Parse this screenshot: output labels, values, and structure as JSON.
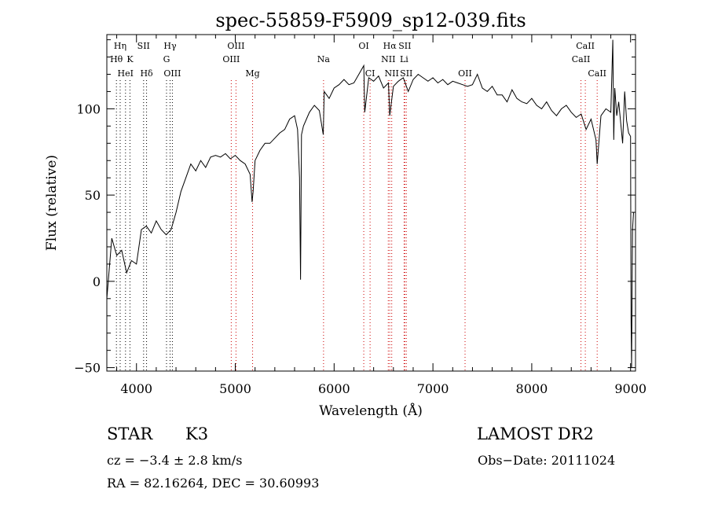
{
  "chart_data": {
    "type": "line",
    "title": "spec-55859-F5909_sp12-039.fits",
    "xlabel": "Wavelength (Å)",
    "ylabel": "Flux (relative)",
    "xlim": [
      3700,
      9050
    ],
    "ylim": [
      -52,
      143
    ],
    "x_ticks": [
      4000,
      5000,
      6000,
      7000,
      8000,
      9000
    ],
    "y_ticks": [
      -50,
      0,
      50,
      100
    ],
    "x_tick_labels": [
      "4000",
      "5000",
      "6000",
      "7000",
      "8000",
      "9000"
    ],
    "y_tick_labels": [
      "−50",
      "0",
      "50",
      "100"
    ],
    "series": [
      {
        "x": [
          3700,
          3750,
          3800,
          3850,
          3900,
          3950,
          4000,
          4050,
          4100,
          4150,
          4200,
          4250,
          4300,
          4350,
          4400,
          4450,
          4500,
          4550,
          4600,
          4650,
          4700,
          4750,
          4800,
          4850,
          4900,
          4950,
          5000,
          5050,
          5100,
          5150,
          5170,
          5180,
          5200,
          5250,
          5300,
          5350,
          5400,
          5450,
          5500,
          5550,
          5600,
          5630,
          5650,
          5660,
          5670,
          5690,
          5720,
          5750,
          5800,
          5850,
          5890,
          5900,
          5950,
          6000,
          6050,
          6100,
          6150,
          6200,
          6250,
          6300,
          6310,
          6350,
          6400,
          6450,
          6500,
          6550,
          6563,
          6600,
          6650,
          6700,
          6750,
          6800,
          6850,
          6900,
          6950,
          7000,
          7050,
          7100,
          7150,
          7200,
          7250,
          7300,
          7350,
          7400,
          7450,
          7500,
          7550,
          7600,
          7650,
          7700,
          7750,
          7800,
          7850,
          7900,
          7950,
          8000,
          8050,
          8100,
          8150,
          8200,
          8250,
          8300,
          8350,
          8400,
          8450,
          8500,
          8550,
          8600,
          8650,
          8662,
          8700,
          8750,
          8800,
          8820,
          8830,
          8840,
          8860,
          8880,
          8900,
          8920,
          8940,
          8960,
          8980,
          9000,
          9005,
          9010,
          9020,
          9030
        ],
        "y": [
          -10,
          25,
          15,
          18,
          5,
          12,
          10,
          30,
          32,
          28,
          35,
          30,
          27,
          30,
          40,
          52,
          60,
          68,
          64,
          70,
          66,
          72,
          73,
          72,
          74,
          71,
          73,
          70,
          68,
          62,
          46,
          52,
          70,
          76,
          80,
          80,
          83,
          86,
          88,
          94,
          96,
          88,
          60,
          1,
          85,
          90,
          94,
          98,
          102,
          99,
          85,
          110,
          106,
          112,
          114,
          117,
          114,
          115,
          120,
          125,
          98,
          118,
          116,
          119,
          112,
          115,
          96,
          113,
          116,
          118,
          110,
          117,
          120,
          118,
          116,
          118,
          115,
          117,
          114,
          116,
          115,
          114,
          113,
          114,
          120,
          112,
          110,
          113,
          108,
          108,
          104,
          111,
          106,
          104,
          103,
          106,
          102,
          100,
          104,
          99,
          96,
          100,
          102,
          98,
          95,
          97,
          88,
          94,
          82,
          68,
          96,
          100,
          98,
          140,
          82,
          112,
          96,
          104,
          92,
          80,
          110,
          93,
          86,
          84,
          -20,
          -50,
          30,
          40
        ]
      }
    ],
    "lines": [
      {
        "label": "Hη",
        "wave": 3835,
        "color": "#000000",
        "row": 0
      },
      {
        "label": "Hθ",
        "wave": 3797,
        "color": "#000000",
        "row": 1
      },
      {
        "label": "K",
        "wave": 3934,
        "color": "#000000",
        "row": 1
      },
      {
        "label": "HeI",
        "wave": 3889,
        "color": "#000000",
        "row": 2
      },
      {
        "label": "SII",
        "wave": 4072,
        "color": "#000000",
        "row": 0
      },
      {
        "label": "Hδ",
        "wave": 4102,
        "color": "#000000",
        "row": 2
      },
      {
        "label": "Hγ",
        "wave": 4340,
        "color": "#000000",
        "row": 0
      },
      {
        "label": "G",
        "wave": 4304,
        "color": "#000000",
        "row": 1
      },
      {
        "label": "OIII",
        "wave": 4363,
        "color": "#000000",
        "row": 2
      },
      {
        "label": "OIII",
        "wave": 5007,
        "color": "#cc0000",
        "row": 0
      },
      {
        "label": "OIII",
        "wave": 4959,
        "color": "#cc0000",
        "row": 1
      },
      {
        "label": "Mg",
        "wave": 5175,
        "color": "#cc0000",
        "row": 2
      },
      {
        "label": "Na",
        "wave": 5893,
        "color": "#cc0000",
        "row": 1
      },
      {
        "label": "OI",
        "wave": 6300,
        "color": "#cc0000",
        "row": 0
      },
      {
        "label": "CI",
        "wave": 6364,
        "color": "#cc0000",
        "row": 2
      },
      {
        "label": "Hα",
        "wave": 6563,
        "color": "#cc0000",
        "row": 0
      },
      {
        "label": "SII",
        "wave": 6716,
        "color": "#cc0000",
        "row": 0
      },
      {
        "label": "NII",
        "wave": 6548,
        "color": "#cc0000",
        "row": 1
      },
      {
        "label": "Li",
        "wave": 6708,
        "color": "#cc0000",
        "row": 1
      },
      {
        "label": "NII",
        "wave": 6583,
        "color": "#cc0000",
        "row": 2
      },
      {
        "label": "SII",
        "wave": 6731,
        "color": "#cc0000",
        "row": 2
      },
      {
        "label": "OII",
        "wave": 7325,
        "color": "#cc0000",
        "row": 2
      },
      {
        "label": "CaII",
        "wave": 8542,
        "color": "#cc0000",
        "row": 0
      },
      {
        "label": "CaII",
        "wave": 8498,
        "color": "#cc0000",
        "row": 1
      },
      {
        "label": "CaII",
        "wave": 8662,
        "color": "#cc0000",
        "row": 2
      }
    ]
  },
  "info": {
    "object_class": "STAR",
    "subclass": "K3",
    "survey": "LAMOST DR2",
    "redshift": "cz = −3.4 ± 2.8 km/s",
    "obs_date": "Obs−Date: 20111024",
    "coords": "RA =  82.16264, DEC =  30.60993"
  }
}
